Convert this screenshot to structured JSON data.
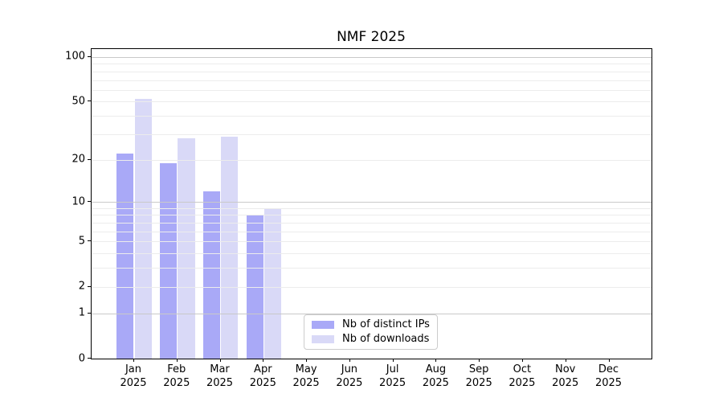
{
  "chart_data": {
    "type": "bar",
    "title": "NMF 2025",
    "categories": [
      "Jan",
      "Feb",
      "Mar",
      "Apr",
      "May",
      "Jun",
      "Jul",
      "Aug",
      "Sep",
      "Oct",
      "Nov",
      "Dec"
    ],
    "category_sublabel": "2025",
    "series": [
      {
        "name": "Nb of distinct IPs",
        "color": "#a9a9f7",
        "values": [
          22,
          19,
          12,
          8,
          null,
          null,
          null,
          null,
          null,
          null,
          null,
          null
        ]
      },
      {
        "name": "Nb of downloads",
        "color": "#d9d9f7",
        "values": [
          52,
          28,
          29,
          9,
          null,
          null,
          null,
          null,
          null,
          null,
          null,
          null
        ]
      }
    ],
    "xlabel": "",
    "ylabel": "",
    "y_scale": "log10(1+y)",
    "y_ticks": [
      0,
      1,
      2,
      5,
      10,
      20,
      50,
      100
    ],
    "y_major_gridlines": [
      1,
      10,
      100
    ],
    "y_minor_gridlines": [
      2,
      3,
      4,
      5,
      6,
      7,
      8,
      9,
      20,
      30,
      40,
      50,
      60,
      70,
      80,
      90
    ],
    "ylim": [
      0,
      113
    ],
    "grid": true,
    "grid_above_bars": true,
    "legend_position": "lower center"
  },
  "colors": {
    "spine": "#000000",
    "major_grid": "#c9c9c9",
    "minor_grid": "#ececec",
    "legend_border": "#cccccc",
    "text": "#000000",
    "background": "#ffffff"
  }
}
